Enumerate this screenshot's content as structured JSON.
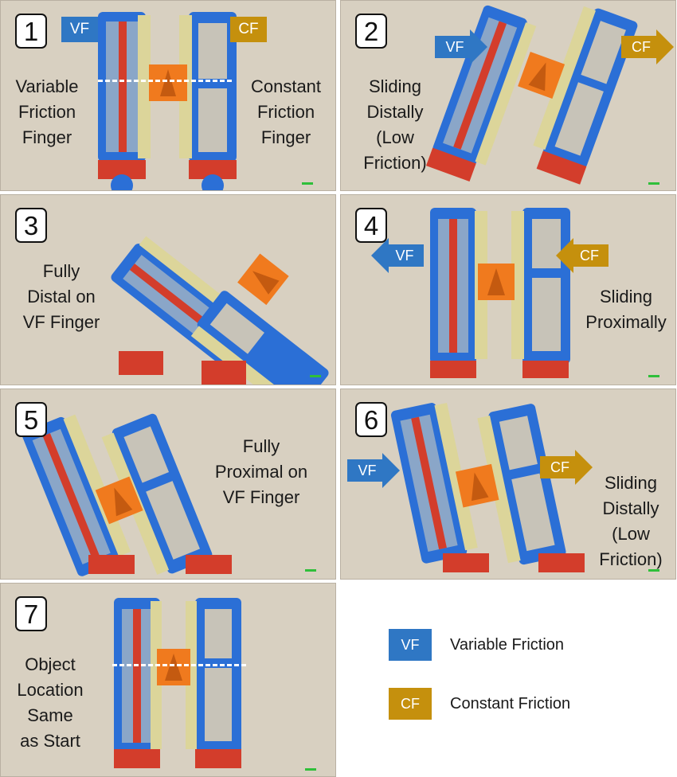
{
  "colors": {
    "vf": "#2f77c4",
    "cf": "#c5900d",
    "board": "#d8d0c1",
    "finger_blue": "#2b6fd6",
    "finger_red": "#d33d2b",
    "pad": "#dcd59a",
    "object": "#f07a1e"
  },
  "panels": [
    {
      "number": "1",
      "caption": [
        "Variable",
        "Friction",
        "Finger"
      ],
      "caption_right": [
        "Constant",
        "Friction",
        "Finger"
      ],
      "tag_vf": "VF",
      "tag_cf": "CF"
    },
    {
      "number": "2",
      "caption": [
        "Sliding",
        "Distally",
        "(Low",
        "Friction)"
      ],
      "arrow_vf": "VF",
      "arrow_cf": "CF"
    },
    {
      "number": "3",
      "caption": [
        "Fully",
        "Distal on",
        "VF Finger"
      ]
    },
    {
      "number": "4",
      "caption": [
        "Sliding",
        "Proximally"
      ],
      "arrow_vf": "VF",
      "arrow_cf": "CF"
    },
    {
      "number": "5",
      "caption": [
        "Fully",
        "Proximal on",
        "VF Finger"
      ]
    },
    {
      "number": "6",
      "caption": [
        "Sliding",
        "Distally",
        "(Low",
        "Friction)"
      ],
      "arrow_vf": "VF",
      "arrow_cf": "CF"
    },
    {
      "number": "7",
      "caption": [
        "Object",
        "Location",
        "Same",
        "as Start"
      ]
    }
  ],
  "legend": [
    {
      "abbr": "VF",
      "label": "Variable Friction"
    },
    {
      "abbr": "CF",
      "label": "Constant Friction"
    }
  ]
}
